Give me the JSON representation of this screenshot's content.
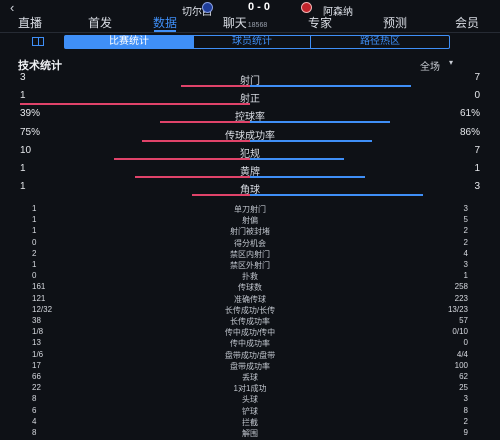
{
  "header": {
    "back_icon": "chevron-left-icon",
    "home_team": "切尔西",
    "away_team": "阿森纳",
    "score": "0 - 0",
    "home_crest": "chelsea-crest-icon",
    "away_crest": "arsenal-crest-icon"
  },
  "nav": {
    "tabs": [
      {
        "label": "直播"
      },
      {
        "label": "首发"
      },
      {
        "label": "数据"
      },
      {
        "label": "聊天",
        "sub": "18568"
      },
      {
        "label": "专家"
      },
      {
        "label": "预测"
      },
      {
        "label": "会员"
      }
    ],
    "active_tab": "数据"
  },
  "subtabs": {
    "icon": "pitch-icon",
    "items": [
      "比赛统计",
      "球员统计",
      "路径热区"
    ],
    "active": "比赛统计"
  },
  "section": {
    "title": "技术统计",
    "scope": "全场"
  },
  "colors": {
    "home": "#e0436a",
    "away": "#3f8ff7",
    "accent": "#3f8ff7"
  },
  "bar_stats": [
    {
      "label": "射门",
      "home": "3",
      "away": "7",
      "home_share": 0.3,
      "away_share": 0.7
    },
    {
      "label": "射正",
      "home": "1",
      "away": "0",
      "home_share": 1.0,
      "away_share": 0.0
    },
    {
      "label": "控球率",
      "home": "39%",
      "away": "61%",
      "home_share": 0.39,
      "away_share": 0.61
    },
    {
      "label": "传球成功率",
      "home": "75%",
      "away": "86%",
      "home_share": 0.47,
      "away_share": 0.53
    },
    {
      "label": "犯规",
      "home": "10",
      "away": "7",
      "home_share": 0.59,
      "away_share": 0.41
    },
    {
      "label": "黄牌",
      "home": "1",
      "away": "1",
      "home_share": 0.5,
      "away_share": 0.5
    },
    {
      "label": "角球",
      "home": "1",
      "away": "3",
      "home_share": 0.25,
      "away_share": 0.75
    }
  ],
  "detail_stats": [
    {
      "label": "单刀射门",
      "home": "1",
      "away": "3"
    },
    {
      "label": "射偏",
      "home": "1",
      "away": "5"
    },
    {
      "label": "射门被封堵",
      "home": "1",
      "away": "2"
    },
    {
      "label": "得分机会",
      "home": "0",
      "away": "2"
    },
    {
      "label": "禁区内射门",
      "home": "2",
      "away": "4"
    },
    {
      "label": "禁区外射门",
      "home": "1",
      "away": "3"
    },
    {
      "label": "扑救",
      "home": "0",
      "away": "1"
    },
    {
      "label": "传球数",
      "home": "161",
      "away": "258"
    },
    {
      "label": "准确传球",
      "home": "121",
      "away": "223"
    },
    {
      "label": "长传成功/长传",
      "home": "12/32",
      "away": "13/23"
    },
    {
      "label": "长传成功率",
      "home": "38",
      "away": "57"
    },
    {
      "label": "传中成功/传中",
      "home": "1/8",
      "away": "0/10"
    },
    {
      "label": "传中成功率",
      "home": "13",
      "away": "0"
    },
    {
      "label": "盘带成功/盘带",
      "home": "1/6",
      "away": "4/4"
    },
    {
      "label": "盘带成功率",
      "home": "17",
      "away": "100"
    },
    {
      "label": "丢球",
      "home": "66",
      "away": "62"
    },
    {
      "label": "1对1成功",
      "home": "22",
      "away": "25"
    },
    {
      "label": "头球",
      "home": "8",
      "away": "3"
    },
    {
      "label": "铲球",
      "home": "6",
      "away": "8"
    },
    {
      "label": "拦截",
      "home": "4",
      "away": "2"
    },
    {
      "label": "解围",
      "home": "8",
      "away": "9"
    }
  ]
}
